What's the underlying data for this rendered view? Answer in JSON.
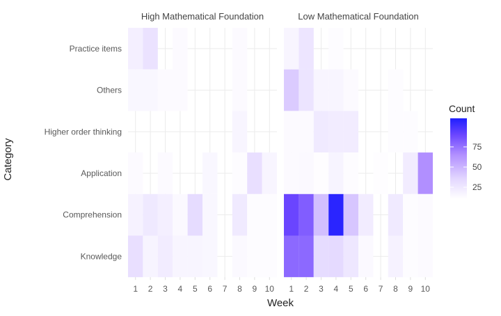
{
  "chart_data": {
    "type": "heatmap",
    "title": "",
    "xlabel": "Week",
    "ylabel": "Category",
    "x": [
      "1",
      "2",
      "3",
      "4",
      "5",
      "6",
      "7",
      "8",
      "9",
      "10"
    ],
    "categories": [
      "Practice items",
      "Others",
      "Higher order thinking",
      "Application",
      "Comprehension",
      "Knowledge"
    ],
    "facets": [
      {
        "name": "High Mathematical Foundation",
        "values": {
          "Practice items": [
            10,
            18,
            0,
            3,
            0,
            0,
            0,
            3,
            0,
            0
          ],
          "Others": [
            5,
            5,
            3,
            3,
            0,
            0,
            0,
            3,
            0,
            0
          ],
          "Higher order thinking": [
            0,
            0,
            0,
            0,
            0,
            0,
            0,
            6,
            0,
            0
          ],
          "Application": [
            3,
            0,
            3,
            0,
            0,
            5,
            0,
            2,
            20,
            6
          ],
          "Comprehension": [
            8,
            14,
            10,
            4,
            22,
            5,
            0,
            13,
            2,
            2
          ],
          "Knowledge": [
            20,
            7,
            12,
            6,
            6,
            5,
            0,
            4,
            2,
            2
          ]
        }
      },
      {
        "name": "Low Mathematical Foundation",
        "values": {
          "Practice items": [
            6,
            16,
            0,
            2,
            0,
            0,
            0,
            0,
            0,
            0
          ],
          "Others": [
            30,
            17,
            6,
            6,
            3,
            0,
            0,
            2,
            0,
            0
          ],
          "Higher order thinking": [
            3,
            3,
            13,
            12,
            12,
            0,
            0,
            2,
            2,
            0
          ],
          "Application": [
            3,
            4,
            1,
            7,
            2,
            0,
            1,
            0,
            12,
            55
          ],
          "Comprehension": [
            80,
            72,
            35,
            97,
            32,
            12,
            0,
            13,
            2,
            3
          ],
          "Knowledge": [
            68,
            68,
            22,
            23,
            15,
            4,
            0,
            8,
            2,
            3
          ]
        }
      }
    ],
    "legend": {
      "title": "Count",
      "ticks": [
        25,
        50,
        75
      ],
      "range": [
        0,
        100
      ],
      "position": "right",
      "color_low": "#ffffff",
      "color_high": "#1f1fff"
    },
    "grid": true
  }
}
